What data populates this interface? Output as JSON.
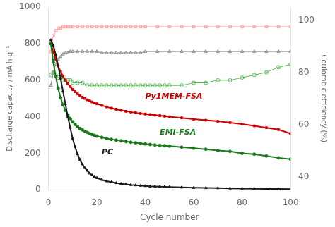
{
  "chart_data": {
    "type": "line",
    "xlabel": "Cycle number",
    "ylabel": "Discharge capacity / mA h g⁻¹",
    "y2label": "Coulombic efficiency (%)",
    "xlim": [
      0,
      100
    ],
    "xticks": [
      0,
      20,
      40,
      60,
      80,
      100
    ],
    "ylim": [
      0,
      1000
    ],
    "yticks": [
      0,
      200,
      400,
      600,
      800,
      1000
    ],
    "y2lim": [
      35,
      105
    ],
    "y2ticks": [
      40,
      60,
      80,
      100
    ],
    "grid": false,
    "series": [
      {
        "color": "#1a1a1a",
        "marker": "triangle",
        "x": [
          1,
          2,
          3,
          4,
          5,
          6,
          7,
          8,
          9,
          10,
          11,
          12,
          13,
          14,
          15,
          16,
          17,
          18,
          19,
          20,
          22,
          24,
          26,
          28,
          30,
          32,
          34,
          36,
          38,
          40,
          42,
          44,
          46,
          48,
          50,
          55,
          60,
          65,
          70,
          75,
          80,
          85,
          90,
          95,
          100
        ],
        "values": [
          820,
          790,
          740,
          680,
          610,
          540,
          470,
          400,
          340,
          280,
          235,
          195,
          165,
          140,
          120,
          105,
          90,
          80,
          72,
          65,
          55,
          47,
          42,
          37,
          33,
          30,
          27,
          25,
          23,
          21,
          19,
          18,
          17,
          16,
          15,
          13,
          11,
          10,
          9,
          8,
          7,
          6,
          5,
          5,
          4
        ]
      },
      {
        "color": "#1a7a1a",
        "marker": "circle",
        "x": [
          1,
          2,
          3,
          4,
          5,
          6,
          7,
          8,
          9,
          10,
          11,
          12,
          13,
          14,
          15,
          16,
          17,
          18,
          19,
          20,
          22,
          24,
          26,
          28,
          30,
          32,
          34,
          36,
          38,
          40,
          42,
          44,
          46,
          48,
          50,
          55,
          60,
          65,
          70,
          75,
          80,
          85,
          90,
          95,
          100
        ],
        "values": [
          800,
          700,
          620,
          555,
          505,
          465,
          435,
          410,
          390,
          372,
          358,
          346,
          336,
          328,
          320,
          314,
          308,
          303,
          298,
          294,
          287,
          281,
          276,
          272,
          268,
          264,
          260,
          257,
          254,
          251,
          248,
          245,
          243,
          241,
          239,
          233,
          228,
          222,
          215,
          210,
          200,
          195,
          185,
          175,
          168
        ]
      },
      {
        "color": "#cc0000",
        "marker": "square",
        "x": [
          1,
          2,
          3,
          4,
          5,
          6,
          7,
          8,
          9,
          10,
          11,
          12,
          13,
          14,
          15,
          16,
          17,
          18,
          19,
          20,
          22,
          24,
          26,
          28,
          30,
          32,
          34,
          36,
          38,
          40,
          42,
          44,
          46,
          48,
          50,
          55,
          60,
          65,
          70,
          75,
          80,
          85,
          90,
          95,
          100
        ],
        "values": [
          800,
          755,
          715,
          678,
          648,
          622,
          600,
          581,
          564,
          549,
          537,
          525,
          516,
          507,
          500,
          493,
          487,
          481,
          476,
          471,
          462,
          454,
          447,
          441,
          435,
          430,
          426,
          422,
          418,
          415,
          412,
          409,
          406,
          403,
          400,
          394,
          387,
          381,
          375,
          368,
          360,
          350,
          340,
          330,
          308
        ]
      },
      {
        "color": "#888888",
        "marker": "triangle",
        "axis": "y2",
        "x": [
          1,
          2,
          3,
          4,
          5,
          6,
          7,
          8,
          9,
          10,
          12,
          14,
          16,
          18,
          20,
          22,
          24,
          26,
          28,
          30,
          32,
          34,
          36,
          38,
          40,
          45,
          50,
          55,
          60,
          65,
          70,
          75,
          80,
          85,
          90,
          95,
          100
        ],
        "values": [
          75,
          80,
          83,
          85,
          86,
          87,
          87.5,
          87.5,
          88,
          88,
          88,
          88,
          88,
          88,
          88,
          87.5,
          87.5,
          87.5,
          87.5,
          87.5,
          87.5,
          87.5,
          87.5,
          87.5,
          88,
          88,
          88,
          88,
          88,
          88,
          88,
          88,
          88,
          88,
          88,
          88,
          88
        ]
      },
      {
        "color": "#55bb55",
        "marker": "circle",
        "axis": "y2",
        "x": [
          1,
          2,
          3,
          4,
          5,
          6,
          7,
          8,
          9,
          10,
          12,
          14,
          16,
          18,
          20,
          22,
          24,
          26,
          28,
          30,
          32,
          34,
          36,
          38,
          40,
          42,
          44,
          46,
          48,
          50,
          55,
          60,
          65,
          70,
          75,
          80,
          85,
          90,
          95,
          100
        ],
        "values": [
          79,
          80,
          79,
          78,
          78,
          77,
          77,
          77,
          77,
          76,
          76,
          76,
          75,
          75,
          75,
          75,
          75,
          75,
          75,
          75,
          75,
          75,
          75,
          75,
          75,
          75,
          75,
          75,
          75,
          75,
          75,
          76,
          76,
          77,
          77,
          78,
          79,
          80,
          82,
          83
        ]
      },
      {
        "color": "#ff9999",
        "marker": "square",
        "axis": "y2",
        "x": [
          1,
          2,
          3,
          4,
          5,
          6,
          7,
          8,
          9,
          10,
          12,
          14,
          16,
          18,
          20,
          22,
          24,
          26,
          28,
          30,
          32,
          34,
          36,
          38,
          40,
          45,
          50,
          55,
          60,
          65,
          70,
          75,
          80,
          85,
          90,
          95,
          100
        ],
        "values": [
          88,
          94,
          96,
          97,
          97,
          97.5,
          97.5,
          97.5,
          97.5,
          97.5,
          97.5,
          97.5,
          97.5,
          97.5,
          97.5,
          97.5,
          97.5,
          97.5,
          97.5,
          97.5,
          97.5,
          97.5,
          97.5,
          97.5,
          97.5,
          97.5,
          97.5,
          97.5,
          97.5,
          97.5,
          97.5,
          97.5,
          97.5,
          97.5,
          97.5,
          97.5,
          97.5
        ]
      }
    ],
    "annotations": [
      {
        "text": "PC",
        "x": 22,
        "y": 185,
        "color": "#1a1a1a"
      },
      {
        "text": "EMI-FSA",
        "x": 46,
        "y": 290,
        "color": "#1a7a1a"
      },
      {
        "text": "Py1MEM-FSA",
        "x": 40,
        "y": 490,
        "color": "#cc0000"
      }
    ]
  }
}
